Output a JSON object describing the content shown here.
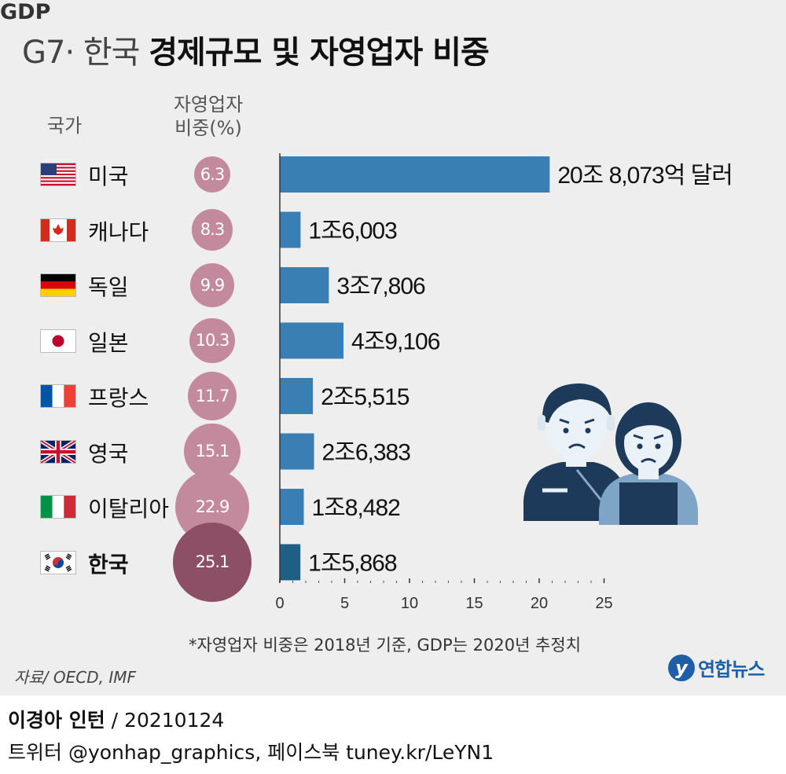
{
  "title_light": "G7· 한국",
  "title_bold": "경제규모 및 자영업자 비중",
  "headers": {
    "country": "국가",
    "self_employed_line1": "자영업자",
    "self_employed_line2": "비중(%)",
    "gdp": "GDP"
  },
  "note": "*자영업자 비중은 2018년 기준, GDP는 2020년 추정치",
  "source": "자료/ OECD, IMF",
  "logo_text": "연합뉴스",
  "credit_name": "이경아 인턴",
  "credit_date": " / 20210124",
  "credit_links": "트위터 @yonhap_graphics, 페이스북 tuney.kr/LeYN1",
  "colors": {
    "bar": "#3a7fb4",
    "bar_highlight": "#1f5f86",
    "circle": "#c38a9d",
    "circle_highlight": "#8d4f66",
    "background": "#eeeeee"
  },
  "chart_data": {
    "type": "bar",
    "orientation": "horizontal",
    "categories": [
      "미국",
      "캐나다",
      "독일",
      "일본",
      "프랑스",
      "영국",
      "이탈리아",
      "한국"
    ],
    "flags": [
      "us-flag-icon",
      "canada-flag-icon",
      "germany-flag-icon",
      "japan-flag-icon",
      "france-flag-icon",
      "uk-flag-icon",
      "italy-flag-icon",
      "korea-flag-icon"
    ],
    "series": [
      {
        "name": "GDP",
        "values": [
          20.8073,
          1.6003,
          3.7806,
          4.9106,
          2.5515,
          2.6383,
          1.8482,
          1.5868
        ],
        "labels": [
          "20조 8,073억 달러",
          "1조6,003",
          "3조7,806",
          "4조9,106",
          "2조5,515",
          "2조6,383",
          "1조8,482",
          "1조5,868"
        ]
      },
      {
        "name": "자영업자 비중(%)",
        "values": [
          6.3,
          8.3,
          9.9,
          10.3,
          11.7,
          15.1,
          22.9,
          25.1
        ],
        "labels": [
          "6.3",
          "8.3",
          "9.9",
          "10.3",
          "11.7",
          "15.1",
          "22.9",
          "25.1"
        ]
      }
    ],
    "highlight": "한국",
    "xlim": [
      0,
      25
    ],
    "xticks": [
      0,
      5,
      10,
      15,
      20,
      25
    ],
    "xtick_labels": [
      "0",
      "5",
      "10",
      "15",
      "20",
      "25"
    ]
  }
}
